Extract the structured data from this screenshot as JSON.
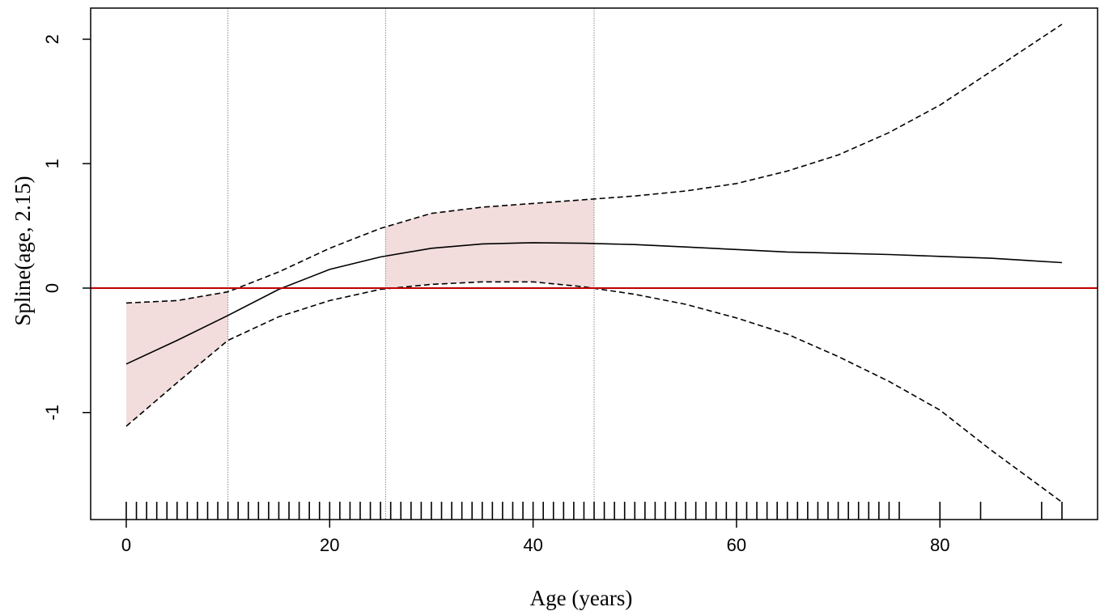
{
  "chart_data": {
    "type": "line",
    "xlabel": "Age  (years)",
    "ylabel": "Spline(age,  2.15)",
    "xlim": [
      -3.5,
      95.5
    ],
    "ylim": [
      -1.86,
      2.25
    ],
    "x_ticks": [
      0,
      20,
      40,
      60,
      80
    ],
    "y_ticks": [
      -1,
      0,
      1,
      2
    ],
    "grid": false,
    "reference_line": {
      "y": 0,
      "color": "#c00000"
    },
    "shaded_regions": [
      {
        "x_start": 0,
        "x_end": 10,
        "color": "#f2dcdc"
      },
      {
        "x_start": 25.5,
        "x_end": 46,
        "color": "#f2dcdc"
      }
    ],
    "vertical_markers": [
      10,
      25.5,
      46
    ],
    "rug_x": [
      0,
      1,
      2,
      3,
      4,
      5,
      6,
      7,
      8,
      9,
      10,
      11,
      12,
      13,
      14,
      15,
      16,
      17,
      18,
      19,
      20,
      21,
      22,
      23,
      24,
      25,
      26,
      27,
      28,
      29,
      30,
      31,
      32,
      33,
      34,
      35,
      36,
      37,
      38,
      39,
      40,
      41,
      42,
      43,
      44,
      45,
      46,
      47,
      48,
      49,
      50,
      51,
      52,
      53,
      54,
      55,
      56,
      57,
      58,
      59,
      60,
      61,
      62,
      63,
      64,
      65,
      66,
      67,
      68,
      69,
      70,
      71,
      72,
      73,
      74,
      75,
      76,
      80,
      84,
      90,
      92
    ],
    "series": [
      {
        "style": "solid",
        "x": [
          0,
          5,
          10,
          15,
          20,
          25,
          30,
          35,
          40,
          45,
          50,
          55,
          60,
          65,
          70,
          75,
          80,
          85,
          92
        ],
        "y": [
          -0.61,
          -0.42,
          -0.22,
          -0.01,
          0.15,
          0.25,
          0.32,
          0.355,
          0.365,
          0.36,
          0.35,
          0.33,
          0.31,
          0.29,
          0.28,
          0.27,
          0.255,
          0.24,
          0.205
        ]
      },
      {
        "style": "dashed",
        "x": [
          0,
          5,
          10,
          15,
          20,
          25,
          30,
          35,
          40,
          45,
          50,
          55,
          60,
          65,
          70,
          75,
          80,
          85,
          92
        ],
        "y": [
          -0.12,
          -0.1,
          -0.03,
          0.13,
          0.32,
          0.48,
          0.6,
          0.65,
          0.68,
          0.71,
          0.74,
          0.78,
          0.84,
          0.94,
          1.07,
          1.25,
          1.47,
          1.74,
          2.12
        ]
      },
      {
        "style": "dashed",
        "x": [
          0,
          5,
          10,
          15,
          20,
          25,
          30,
          35,
          40,
          45,
          50,
          55,
          60,
          65,
          70,
          75,
          80,
          85,
          92
        ],
        "y": [
          -1.11,
          -0.76,
          -0.42,
          -0.23,
          -0.1,
          -0.01,
          0.03,
          0.05,
          0.05,
          0.01,
          -0.05,
          -0.13,
          -0.24,
          -0.37,
          -0.55,
          -0.75,
          -0.98,
          -1.3,
          -1.72
        ]
      }
    ]
  }
}
